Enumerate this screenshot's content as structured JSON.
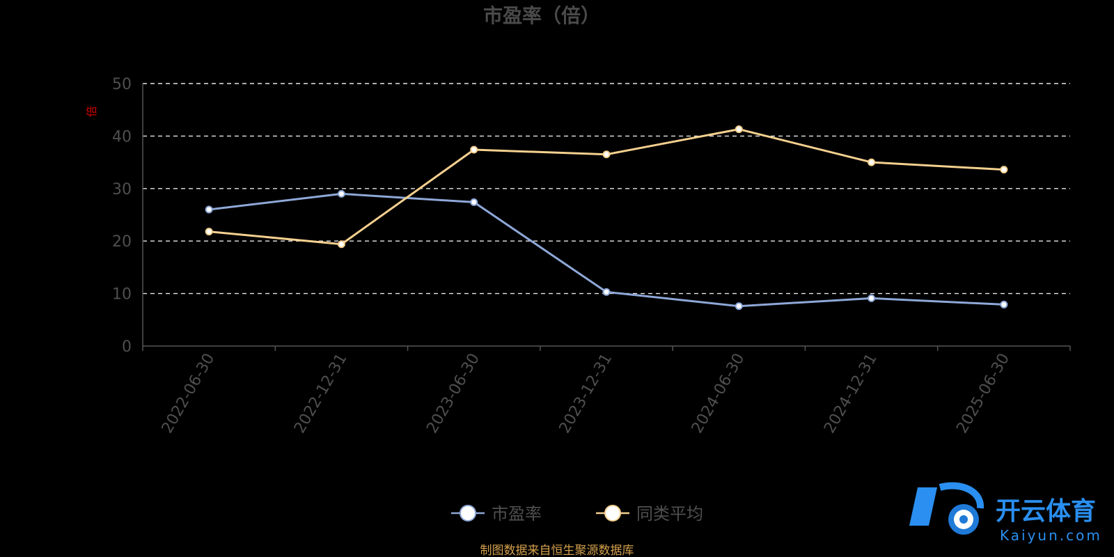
{
  "chart_data": {
    "type": "line",
    "title": "市盈率（倍）",
    "unit_label": "倍",
    "categories": [
      "2022-06-30",
      "2022-12-31",
      "2023-06-30",
      "2023-12-31",
      "2024-06-30",
      "2024-12-31",
      "2025-06-30"
    ],
    "series": [
      {
        "name": "市盈率",
        "color": "#8fa8d8",
        "values": [
          26.0,
          29.0,
          27.4,
          10.3,
          7.6,
          9.1,
          7.9
        ]
      },
      {
        "name": "同类平均",
        "color": "#f5d08f",
        "values": [
          21.8,
          19.4,
          37.4,
          36.5,
          41.3,
          35.0,
          33.6
        ]
      }
    ],
    "y_ticks": [
      0,
      10,
      20,
      30,
      40,
      50
    ],
    "ylim": [
      0,
      50
    ],
    "grid": true,
    "legend_position": "bottom"
  },
  "footer": {
    "source": "制图数据来自恒生聚源数据库"
  },
  "watermark": {
    "brand": "开云体育",
    "domain": "Kaiyun.com"
  }
}
